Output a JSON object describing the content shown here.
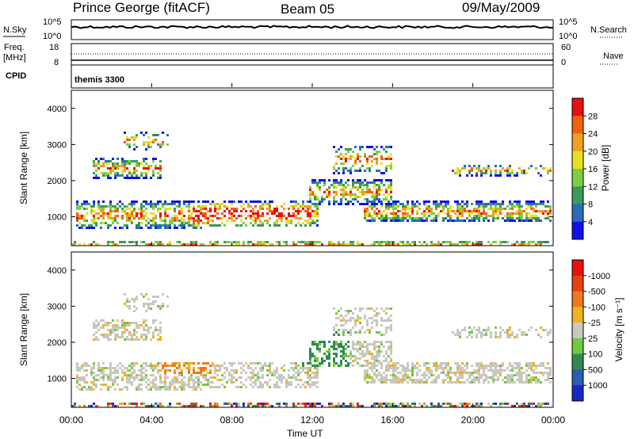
{
  "header": {
    "station": "Prince George (fitACF)",
    "beam": "Beam 05",
    "date": "09/May/2009"
  },
  "top_panels": {
    "nsky_label": "N.Sky",
    "nsky_ticks": [
      "10^5",
      "10^0"
    ],
    "nsearch_label": "N.Search",
    "freq_label": "Freq.",
    "freq_unit": "[MHz]",
    "freq_ticks": [
      "18",
      "8"
    ],
    "nave_label": "Nave",
    "nave_ticks": [
      "60",
      "0"
    ],
    "cpid_label": "CPID",
    "cpid_value": "themis 3300"
  },
  "chart_data": [
    {
      "type": "heatmap",
      "name": "power",
      "ylabel": "Slant Range [km]",
      "ylim": [
        200,
        4500
      ],
      "y_ticks": [
        1000,
        2000,
        3000,
        4000
      ],
      "colorbar_label": "Power [dB]",
      "colorbar_ticks": [
        "4",
        "8",
        "12",
        "16",
        "20",
        "24",
        "28"
      ],
      "colorbar_colors": [
        "#1010e8",
        "#2a6ab8",
        "#3a9a5a",
        "#7cd040",
        "#e8e020",
        "#f0a020",
        "#f06010",
        "#e81010"
      ]
    },
    {
      "type": "heatmap",
      "name": "velocity",
      "ylabel": "Slant Range [km]",
      "ylim": [
        200,
        4500
      ],
      "y_ticks": [
        1000,
        2000,
        3000,
        4000
      ],
      "colorbar_label": "Velocity [m s⁻¹]",
      "colorbar_ticks": [
        "1000",
        "500",
        "100",
        "25",
        "-25",
        "-100",
        "-500",
        "-1000"
      ],
      "colorbar_colors": [
        "#1828c8",
        "#2e5cb0",
        "#2f8a50",
        "#72c840",
        "#c8c8c0",
        "#f0b020",
        "#f07820",
        "#e84010",
        "#e81010"
      ]
    }
  ],
  "x_axis": {
    "label": "Time UT",
    "ticks": [
      "00:00",
      "04:00",
      "08:00",
      "12:00",
      "16:00",
      "20:00",
      "00:00"
    ]
  }
}
